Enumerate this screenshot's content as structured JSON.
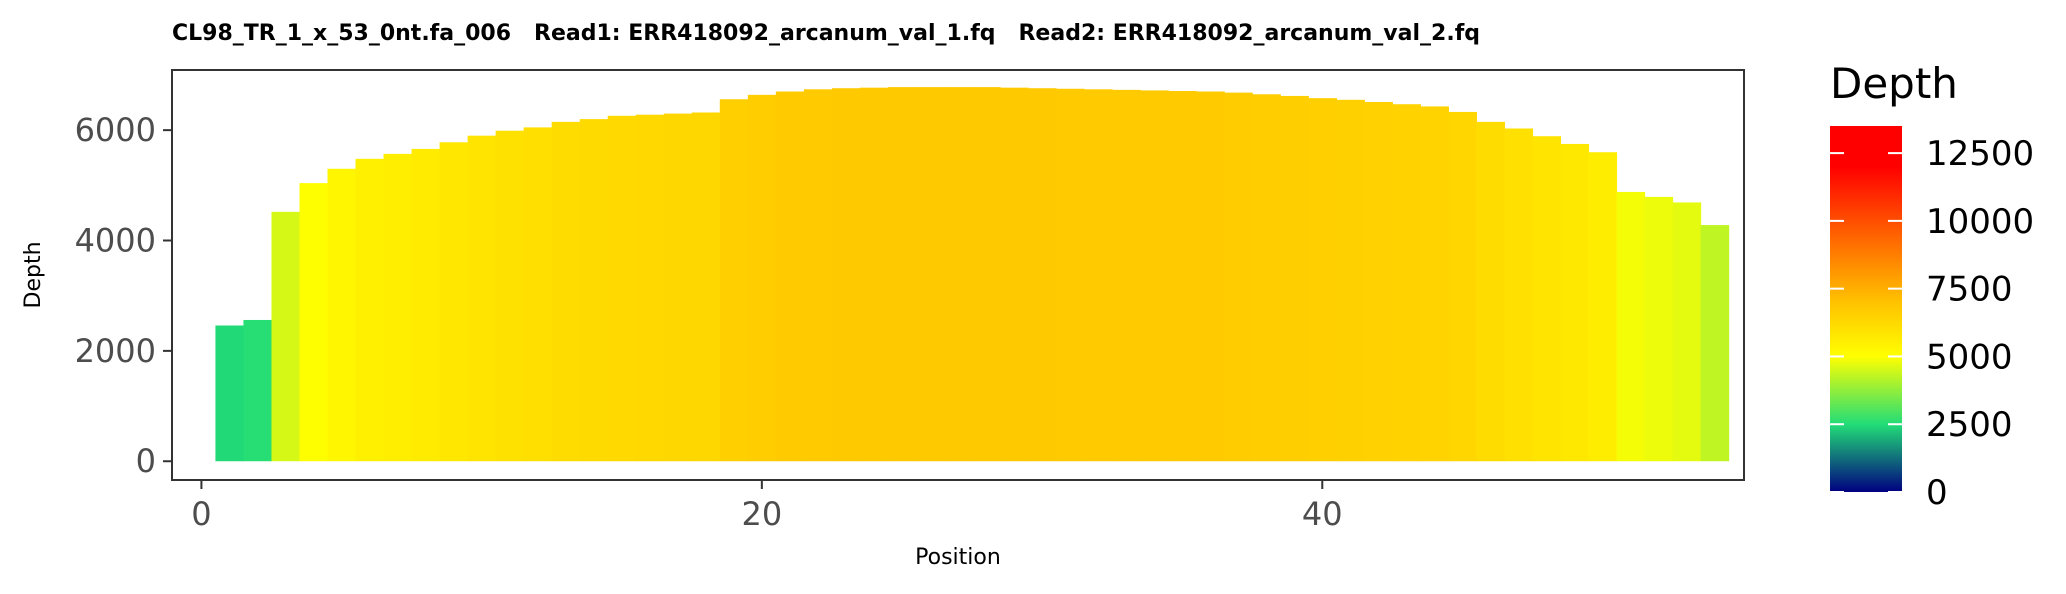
{
  "chart_data": {
    "type": "bar",
    "title": "CL98_TR_1_x_53_0nt.fa_006   Read1: ERR418092_arcanum_val_1.fq   Read2: ERR418092_arcanum_val_2.fq",
    "xlabel": "Position",
    "ylabel": "Depth",
    "xlim": [
      -1.05,
      55.05
    ],
    "ylim": [
      -340,
      7090
    ],
    "x_ticks": [
      0,
      20,
      40
    ],
    "y_ticks": [
      0,
      2000,
      4000,
      6000
    ],
    "grid": false,
    "x": [
      1,
      2,
      3,
      4,
      5,
      6,
      7,
      8,
      9,
      10,
      11,
      12,
      13,
      14,
      15,
      16,
      17,
      18,
      19,
      20,
      21,
      22,
      23,
      24,
      25,
      26,
      27,
      28,
      29,
      30,
      31,
      32,
      33,
      34,
      35,
      36,
      37,
      38,
      39,
      40,
      41,
      42,
      43,
      44,
      45,
      46,
      47,
      48,
      49,
      50,
      51,
      52,
      53,
      54
    ],
    "values": [
      2460,
      2560,
      4520,
      5040,
      5300,
      5480,
      5570,
      5660,
      5780,
      5900,
      5990,
      6050,
      6150,
      6200,
      6260,
      6280,
      6300,
      6320,
      6560,
      6640,
      6700,
      6740,
      6760,
      6770,
      6780,
      6780,
      6780,
      6780,
      6770,
      6760,
      6750,
      6740,
      6730,
      6720,
      6710,
      6700,
      6680,
      6650,
      6620,
      6580,
      6550,
      6510,
      6470,
      6430,
      6330,
      6150,
      6030,
      5890,
      5750,
      5600,
      4880,
      4790,
      4690,
      4280
    ],
    "legend": {
      "title": "Depth",
      "position": "right",
      "ticks": [
        0,
        2500,
        5000,
        7500,
        10000,
        12500
      ],
      "tick_labels": [
        "0",
        "2500",
        "5000",
        "7500",
        "10000",
        "12500"
      ],
      "range": [
        0,
        13500
      ],
      "colors": [
        "#000080",
        "#22DD77",
        "#FFFF00",
        "#FFC200",
        "#FF0000"
      ],
      "color_stops": [
        0,
        2500,
        5000,
        7000,
        12000
      ]
    }
  }
}
